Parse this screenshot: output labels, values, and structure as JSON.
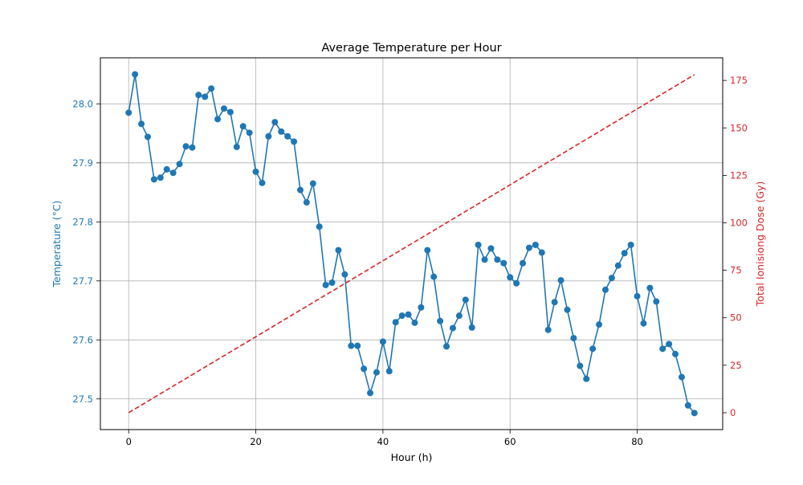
{
  "chart_data": {
    "type": "line",
    "title": "Average Temperature per Hour",
    "xlabel": "Hour (h)",
    "ylabel_left": "Temperature (°C)",
    "ylabel_right": "Total Ionisiong Dose (Gy)",
    "xlim": [
      -4.45,
      93.45
    ],
    "ylim_left": [
      27.448,
      28.078
    ],
    "ylim_right": [
      -8.9,
      186.9
    ],
    "x_ticks": [
      0,
      20,
      40,
      60,
      80
    ],
    "y_left_ticks": [
      27.5,
      27.6,
      27.7,
      27.8,
      27.9,
      28.0
    ],
    "y_right_ticks": [
      0,
      25,
      50,
      75,
      100,
      125,
      150,
      175
    ],
    "grid": true,
    "colors": {
      "temperature": "#1f77b4",
      "dose": "#d62728",
      "grid": "#b0b0b0",
      "axis": "#000000"
    },
    "series": [
      {
        "key": "temperature",
        "axis": "left",
        "style": "solid-markers",
        "x": [
          0,
          1,
          2,
          3,
          4,
          5,
          6,
          7,
          8,
          9,
          10,
          11,
          12,
          13,
          14,
          15,
          16,
          17,
          18,
          19,
          20,
          21,
          22,
          23,
          24,
          25,
          26,
          27,
          28,
          29,
          30,
          31,
          32,
          33,
          34,
          35,
          36,
          37,
          38,
          39,
          40,
          41,
          42,
          43,
          44,
          45,
          46,
          47,
          48,
          49,
          50,
          51,
          52,
          53,
          54,
          55,
          56,
          57,
          58,
          59,
          60,
          61,
          62,
          63,
          64,
          65,
          66,
          67,
          68,
          69,
          70,
          71,
          72,
          73,
          74,
          75,
          76,
          77,
          78,
          79,
          80,
          81,
          82,
          83,
          84,
          85,
          86,
          87,
          88,
          89
        ],
        "y": [
          27.985,
          28.05,
          27.966,
          27.944,
          27.872,
          27.875,
          27.889,
          27.883,
          27.898,
          27.928,
          27.926,
          28.015,
          28.012,
          28.026,
          27.974,
          27.992,
          27.986,
          27.927,
          27.962,
          27.951,
          27.885,
          27.866,
          27.945,
          27.969,
          27.953,
          27.945,
          27.936,
          27.854,
          27.833,
          27.865,
          27.792,
          27.693,
          27.697,
          27.752,
          27.711,
          27.59,
          27.59,
          27.551,
          27.51,
          27.545,
          27.597,
          27.547,
          27.63,
          27.641,
          27.643,
          27.629,
          27.655,
          27.752,
          27.707,
          27.632,
          27.589,
          27.62,
          27.641,
          27.668,
          27.621,
          27.761,
          27.736,
          27.755,
          27.736,
          27.73,
          27.706,
          27.696,
          27.73,
          27.756,
          27.761,
          27.748,
          27.617,
          27.664,
          27.701,
          27.651,
          27.603,
          27.556,
          27.534,
          27.585,
          27.626,
          27.685,
          27.705,
          27.726,
          27.747,
          27.761,
          27.674,
          27.628,
          27.688,
          27.665,
          27.585,
          27.593,
          27.576,
          27.537,
          27.489,
          27.476
        ]
      },
      {
        "key": "dose",
        "axis": "right",
        "style": "dashed",
        "x": [
          0,
          89
        ],
        "y": [
          0,
          178
        ]
      }
    ]
  }
}
